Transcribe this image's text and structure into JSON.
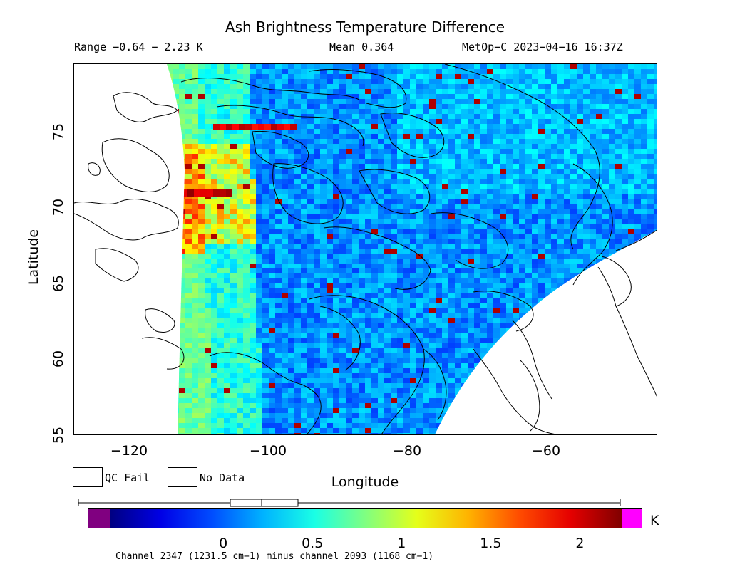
{
  "header": {
    "title": "Ash Brightness Temperature Difference",
    "range": "Range −0.64 − 2.23 K",
    "mean": "Mean 0.364",
    "source": "MetOp−C 2023−04−16 16:37Z"
  },
  "map": {
    "lon_range": [
      -128,
      -44
    ],
    "lat_range": [
      55,
      79.5
    ],
    "x_ticks": [
      "−120",
      "−100",
      "−80",
      "−60"
    ],
    "x_tick_values": [
      -120,
      -100,
      -80,
      -60
    ],
    "y_ticks": [
      "55",
      "60",
      "65",
      "70",
      "75"
    ],
    "y_tick_values": [
      55,
      60,
      65,
      70,
      75
    ],
    "x_label": "Longitude",
    "y_label": "Latitude",
    "swath_mean_value": 0.364,
    "swath_range_value": [
      -0.64,
      2.23
    ]
  },
  "legend": {
    "qc_fail": "QC Fail",
    "no_data": "No Data",
    "qc_fail_color": "#808080",
    "no_data_color": "#ffffff"
  },
  "colorbar": {
    "unit": "K",
    "vmin": -0.64,
    "vmax": 2.23,
    "tick_labels": [
      "0",
      "0.5",
      "1",
      "1.5",
      "2"
    ],
    "tick_values": [
      0,
      0.5,
      1,
      1.5,
      2
    ],
    "under_color": "#800080",
    "over_color": "#ff00ff"
  },
  "footnote": "Channel 2347 (1231.5 cm−1) minus channel 2093 (1168 cm−1)"
}
